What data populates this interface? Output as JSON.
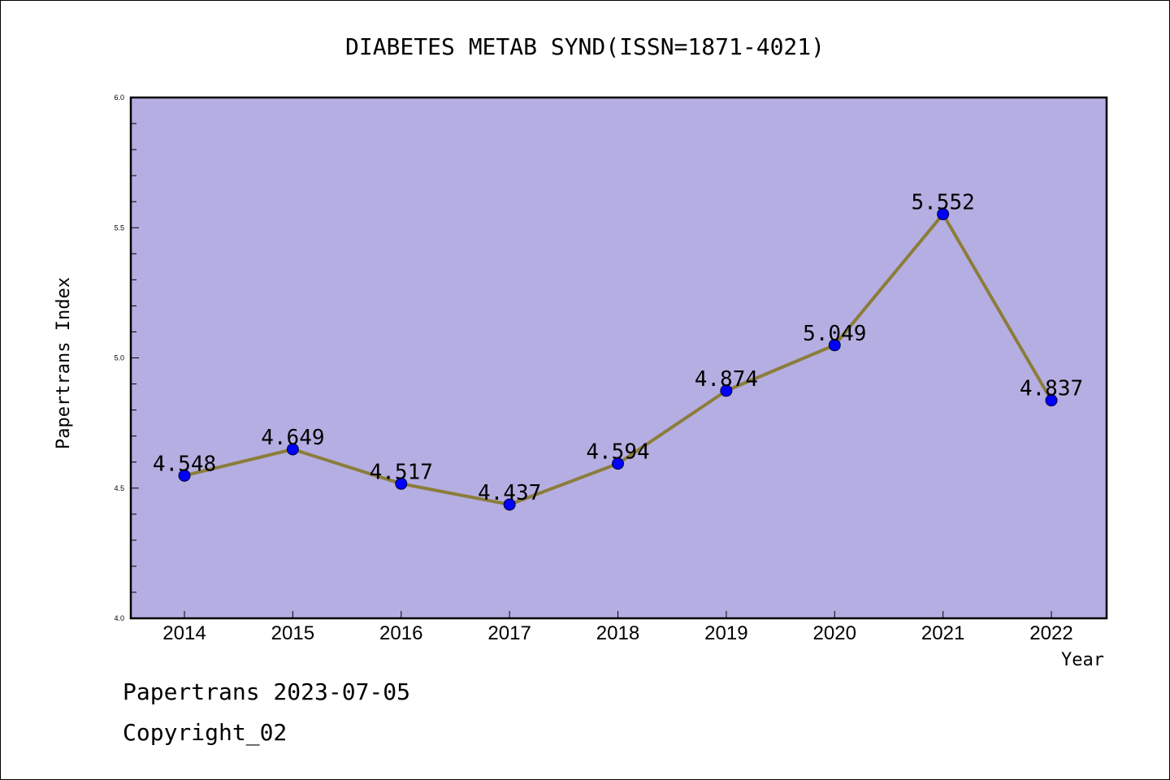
{
  "footer": {
    "line1": "Papertrans 2023-07-05",
    "line2": "Copyright_02"
  },
  "chart_data": {
    "type": "line",
    "title": "DIABETES METAB SYND(ISSN=1871-4021)",
    "xlabel": "Year",
    "ylabel": "Papertrans Index",
    "categories": [
      "2014",
      "2015",
      "2016",
      "2017",
      "2018",
      "2019",
      "2020",
      "2021",
      "2022"
    ],
    "values": [
      4.548,
      4.649,
      4.517,
      4.437,
      4.594,
      4.874,
      5.049,
      5.552,
      4.837
    ],
    "data_labels": [
      "4.548",
      "4.649",
      "4.517",
      "4.437",
      "4.594",
      "4.874",
      "5.049",
      "5.552",
      "4.837"
    ],
    "ylim": [
      4.0,
      6.0
    ],
    "yticks": [
      "4.0",
      "4.5",
      "5.0",
      "5.5",
      "6.0"
    ],
    "colors": {
      "plot_background": "#b5aee2",
      "line": "#8b7d3a",
      "marker": "#0000ff"
    }
  }
}
